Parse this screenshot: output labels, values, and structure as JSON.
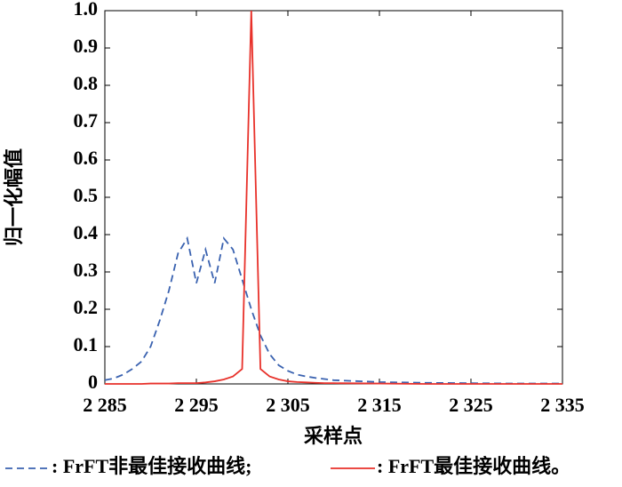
{
  "chart_data": {
    "type": "line",
    "x_label": "采样点",
    "y_label": "归一化幅值",
    "x": [
      2285,
      2286,
      2287,
      2288,
      2289,
      2290,
      2291,
      2292,
      2293,
      2294,
      2295,
      2296,
      2297,
      2298,
      2299,
      2300,
      2301,
      2302,
      2303,
      2304,
      2305,
      2306,
      2307,
      2308,
      2309,
      2310,
      2315,
      2320,
      2325,
      2330,
      2335
    ],
    "series": [
      {
        "name": ": FrFT非最佳接收曲线;",
        "color": "#3a62b0",
        "dash": true,
        "values": [
          0.01,
          0.015,
          0.025,
          0.04,
          0.06,
          0.1,
          0.17,
          0.25,
          0.35,
          0.39,
          0.27,
          0.36,
          0.27,
          0.39,
          0.36,
          0.28,
          0.2,
          0.13,
          0.08,
          0.05,
          0.035,
          0.025,
          0.02,
          0.016,
          0.013,
          0.01,
          0.005,
          0.003,
          0.002,
          0.001,
          0.001
        ]
      },
      {
        "name": ": FrFT最佳接收曲线。",
        "color": "#e8312a",
        "dash": false,
        "values": [
          0,
          0,
          0,
          0,
          0,
          0.001,
          0.001,
          0.001,
          0.002,
          0.002,
          0.002,
          0.004,
          0.007,
          0.012,
          0.02,
          0.04,
          1.0,
          0.04,
          0.02,
          0.012,
          0.007,
          0.005,
          0.004,
          0.003,
          0.002,
          0.002,
          0.001,
          0,
          0,
          0,
          0
        ]
      }
    ],
    "xlim": [
      2285,
      2335
    ],
    "xticks": [
      {
        "value": 2285,
        "label": "2 285"
      },
      {
        "value": 2295,
        "label": "2 295"
      },
      {
        "value": 2305,
        "label": "2 305"
      },
      {
        "value": 2315,
        "label": "2 315"
      },
      {
        "value": 2325,
        "label": "2 325"
      },
      {
        "value": 2335,
        "label": "2 335"
      }
    ],
    "ylim": [
      0,
      1
    ],
    "yticks": [
      0,
      0.1,
      0.2,
      0.3,
      0.4,
      0.5,
      0.6,
      0.7,
      0.8,
      0.9,
      {
        "value": 1,
        "label": "1.0"
      }
    ],
    "grid": false
  }
}
